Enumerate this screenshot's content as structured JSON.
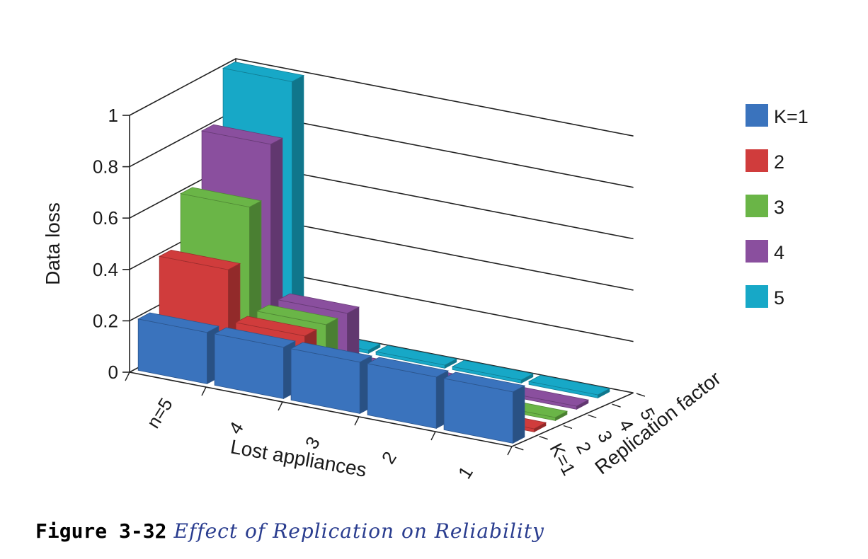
{
  "chart_data": {
    "type": "bar3d",
    "ylabel": "Data loss",
    "xlabel": "Lost appliances",
    "zlabel": "Replication factor",
    "ylim": [
      0,
      1
    ],
    "yticks": [
      "0",
      "0.2",
      "0.4",
      "0.6",
      "0.8",
      "1"
    ],
    "x_categories": [
      "n=5",
      "4",
      "3",
      "2",
      "1"
    ],
    "z_categories": [
      "K=1",
      "2",
      "3",
      "4",
      "5"
    ],
    "series": [
      {
        "name": "K=1",
        "color": "#3a73bd",
        "values": [
          0.2,
          0.2,
          0.2,
          0.2,
          0.2
        ]
      },
      {
        "name": "2",
        "color": "#d03c3c",
        "values": [
          0.4,
          0.2,
          0.1,
          0.05,
          0
        ]
      },
      {
        "name": "3",
        "color": "#6ab547",
        "values": [
          0.6,
          0.2,
          0.05,
          0,
          0
        ]
      },
      {
        "name": "4",
        "color": "#8a4f9e",
        "values": [
          0.8,
          0.2,
          0,
          0,
          0
        ]
      },
      {
        "name": "5",
        "color": "#17a8c7",
        "values": [
          1.0,
          0,
          0,
          0,
          0
        ]
      }
    ],
    "legend": [
      "K=1",
      "2",
      "3",
      "4",
      "5"
    ]
  },
  "caption": {
    "figure": "Figure 3-32",
    "title": "Effect of Replication on Reliability"
  }
}
